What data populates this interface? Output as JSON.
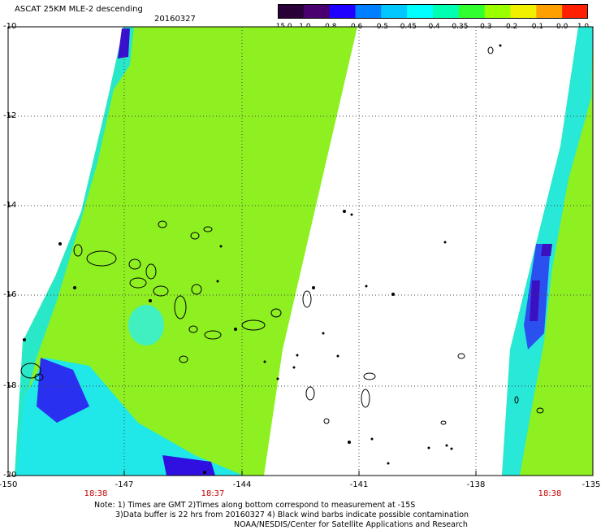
{
  "header": {
    "title": "ASCAT 25KM MLE-2 descending",
    "date": "20160327"
  },
  "colorbar": {
    "labels": [
      "-15.0",
      "-1.0",
      "-0.8",
      "-0.6",
      "-0.5",
      "-0.45",
      "-0.4",
      "-0.35",
      "-0.3",
      "-0.2",
      "-0.1",
      "0.0",
      "1.0"
    ],
    "colors": [
      "#2a0038",
      "#4b0070",
      "#2000ff",
      "#0080ff",
      "#00c8ff",
      "#00ffff",
      "#00ffb0",
      "#30ff30",
      "#9cff00",
      "#f0f000",
      "#ffa000",
      "#ff2000"
    ]
  },
  "map": {
    "lat_labels": [
      "-10",
      "-12",
      "-14",
      "-16",
      "-18",
      "-20"
    ],
    "lon_labels": [
      "-150",
      "-147",
      "-144",
      "-141",
      "-138",
      "-135"
    ],
    "time_labels": [
      "18:38",
      "18:37",
      "18:38"
    ]
  },
  "footer": {
    "line1": "Note: 1) Times are GMT 2)Times along bottom correspond to measurement at -15S",
    "line2": "3)Data buffer is 22 hrs from 20160327 4) Black wind barbs indicate possible contamination",
    "line3": "NOAA/NESDIS/Center for Satellite Applications and Research"
  }
}
